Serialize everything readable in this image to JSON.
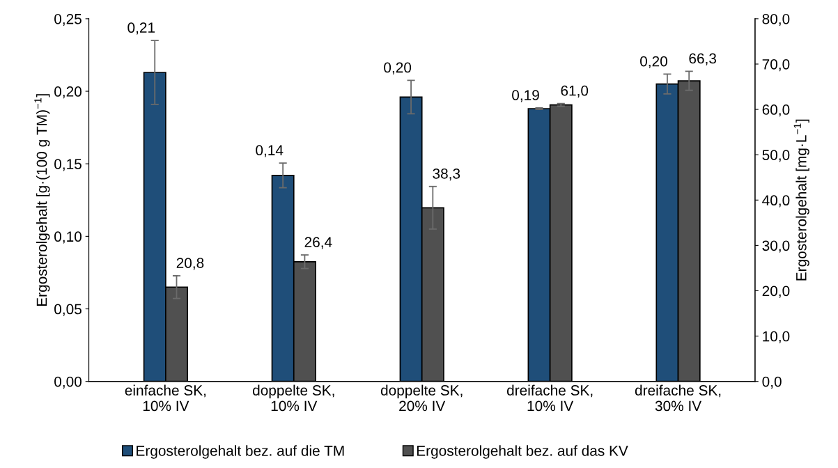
{
  "chart_data": {
    "type": "bar",
    "categories": [
      "einfache SK,\n10% IV",
      "doppelte SK,\n10% IV",
      "doppelte SK,\n20% IV",
      "dreifache SK,\n10% IV",
      "dreifache SK,\n30% IV"
    ],
    "series": [
      {
        "name": "Ergosterolgehalt bez. auf die TM",
        "color": "#1f4e79",
        "values": [
          0.213,
          0.142,
          0.196,
          0.188,
          0.205
        ],
        "errors": [
          0.022,
          0.0085,
          0.0115,
          0.0005,
          0.0068
        ],
        "value_labels": [
          "0,21",
          "0,14",
          "0,20",
          "0,19",
          "0,20"
        ]
      },
      {
        "name": "Ergosterolgehalt bez. auf das KV",
        "color": "#505050",
        "axis": "y2",
        "values": [
          20.8,
          26.4,
          38.3,
          61.0,
          66.3
        ],
        "errors": [
          2.5,
          1.5,
          4.7,
          0.3,
          2.1
        ],
        "value_labels": [
          "20,8",
          "26,4",
          "38,3",
          "61,0",
          "66,3"
        ]
      }
    ],
    "ylabel": "Ergosterolgehalt [g·(100 g TM)$^{−1}$]",
    "y2label": "Ergosterolgehalt [mg·L$^{−1}$]",
    "ylim": [
      0,
      0.25
    ],
    "yticks": [
      {
        "value": 0,
        "label": "0,00"
      },
      {
        "value": 0.05,
        "label": "0,05"
      },
      {
        "value": 0.1,
        "label": "0,10"
      },
      {
        "value": 0.15,
        "label": "0,15"
      },
      {
        "value": 0.2,
        "label": "0,20"
      },
      {
        "value": 0.25,
        "label": "0,25"
      }
    ],
    "y2lim": [
      0,
      80
    ],
    "y2ticks": [
      {
        "value": 0,
        "label": "0,0"
      },
      {
        "value": 10,
        "label": "10,0"
      },
      {
        "value": 20,
        "label": "20,0"
      },
      {
        "value": 30,
        "label": "30,0"
      },
      {
        "value": 40,
        "label": "40,0"
      },
      {
        "value": 50,
        "label": "50,0"
      },
      {
        "value": 60,
        "label": "60,0"
      },
      {
        "value": 70,
        "label": "70,0"
      },
      {
        "value": 80,
        "label": "80,0"
      }
    ],
    "legend": "bottom",
    "grid": false
  }
}
